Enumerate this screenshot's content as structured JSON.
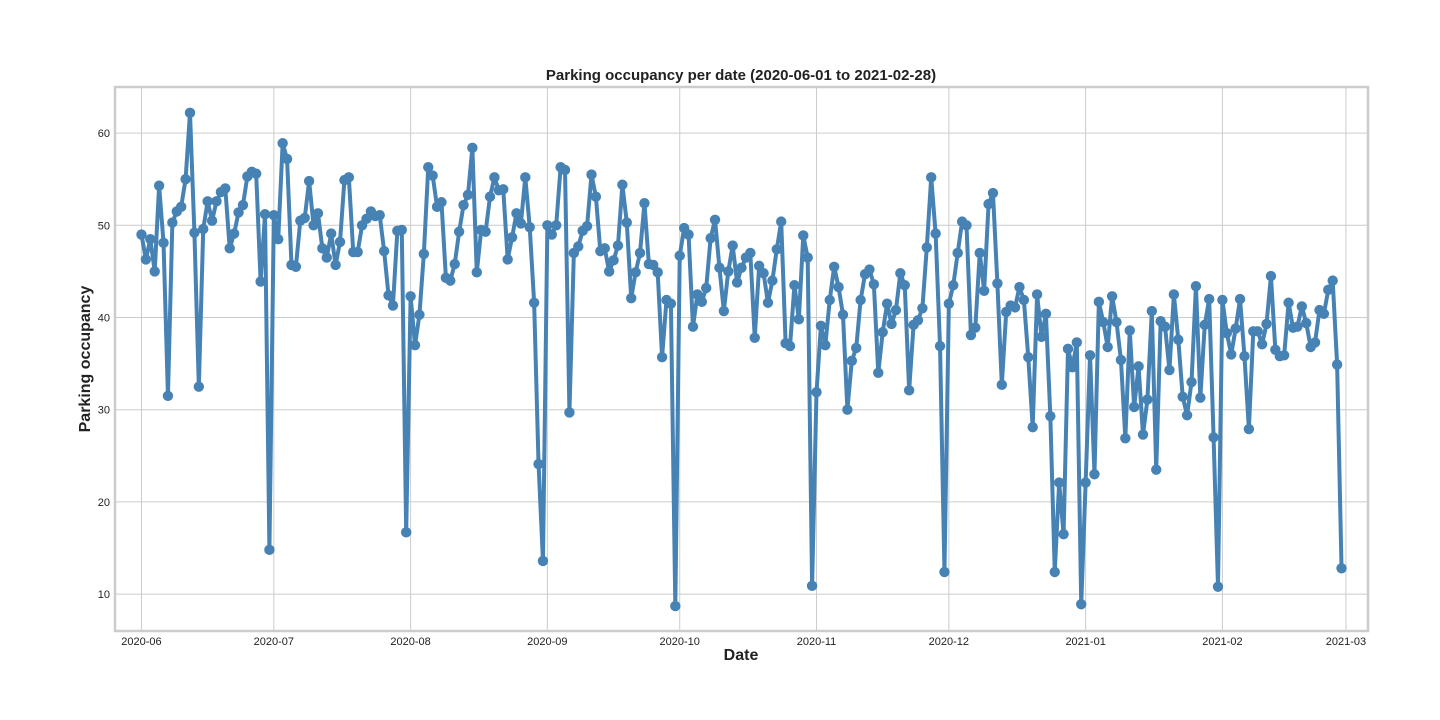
{
  "chart_data": {
    "type": "line",
    "title": "Parking occupancy per date (2020-06-01 to 2021-02-28)",
    "xlabel": "Date",
    "ylabel": "Parking occupancy",
    "x_range": [
      "2020-05-26",
      "2021-03-06"
    ],
    "ylim": [
      6.0,
      65.0
    ],
    "grid": true,
    "x_ticks": [
      "2020-06",
      "2020-07",
      "2020-08",
      "2020-09",
      "2020-10",
      "2020-11",
      "2020-12",
      "2021-01",
      "2021-02",
      "2021-03"
    ],
    "y_ticks": [
      10,
      20,
      30,
      40,
      50,
      60
    ],
    "series": [
      {
        "color": "#4682b4",
        "marker": "circle",
        "x_start": "2020-06-01",
        "x_end": "2021-02-28",
        "y": [
          49.0,
          46.3,
          48.5,
          45.0,
          54.3,
          48.1,
          31.5,
          50.3,
          51.5,
          52.0,
          55.0,
          62.2,
          49.2,
          32.5,
          49.6,
          52.6,
          50.5,
          52.6,
          53.6,
          54.0,
          47.5,
          49.1,
          51.4,
          52.2,
          55.3,
          55.8,
          55.6,
          43.9,
          51.2,
          14.8,
          51.1,
          48.5,
          58.9,
          57.2,
          45.7,
          45.5,
          50.5,
          50.8,
          54.8,
          50.0,
          51.3,
          47.5,
          46.5,
          49.1,
          45.7,
          48.2,
          54.9,
          55.2,
          47.1,
          47.1,
          50.0,
          50.7,
          51.5,
          51.0,
          51.1,
          47.2,
          42.4,
          41.3,
          49.4,
          49.5,
          16.7,
          42.3,
          37.0,
          40.3,
          46.9,
          56.3,
          55.4,
          52.0,
          52.5,
          44.3,
          44.0,
          45.8,
          49.3,
          52.2,
          53.3,
          58.4,
          44.9,
          49.5,
          49.3,
          53.1,
          55.2,
          53.8,
          53.9,
          46.3,
          48.7,
          51.3,
          50.2,
          55.2,
          49.8,
          41.6,
          24.1,
          13.6,
          50.0,
          49.0,
          50.0,
          56.3,
          56.0,
          29.7,
          47.0,
          47.7,
          49.4,
          49.9,
          55.5,
          53.1,
          47.2,
          47.5,
          45.0,
          46.2,
          47.8,
          54.4,
          50.3,
          42.1,
          44.9,
          47.0,
          52.4,
          45.8,
          45.7,
          44.9,
          35.7,
          41.9,
          41.5,
          8.7,
          46.7,
          49.7,
          49.0,
          39.0,
          42.5,
          41.7,
          43.2,
          48.6,
          50.6,
          45.4,
          40.7,
          45.0,
          47.8,
          43.8,
          45.4,
          46.5,
          47.0,
          37.8,
          45.6,
          44.8,
          41.6,
          44.0,
          47.4,
          50.4,
          37.2,
          36.9,
          43.5,
          39.8,
          48.9,
          46.5,
          10.9,
          31.9,
          39.1,
          37.0,
          41.9,
          45.5,
          43.3,
          40.3,
          30.0,
          35.3,
          36.7,
          41.9,
          44.7,
          45.2,
          43.6,
          34.0,
          38.4,
          41.5,
          39.3,
          40.8,
          44.8,
          43.5,
          32.1,
          39.2,
          39.7,
          41.0,
          47.6,
          55.2,
          49.1,
          36.9,
          12.4,
          41.5,
          43.5,
          47.0,
          50.4,
          50.0,
          38.1,
          38.9,
          47.0,
          42.9,
          52.3,
          53.5,
          43.7,
          32.7,
          40.6,
          41.3,
          41.1,
          43.3,
          41.9,
          35.7,
          28.1,
          42.5,
          37.9,
          40.4,
          29.3,
          12.4,
          22.1,
          16.5,
          36.6,
          34.6,
          37.3,
          8.9,
          22.1,
          35.9,
          23.0,
          41.7,
          39.5,
          36.8,
          42.3,
          39.5,
          35.4,
          26.9,
          38.6,
          30.3,
          34.7,
          27.3,
          31.1,
          40.7,
          23.5,
          39.6,
          39.0,
          34.3,
          42.5,
          37.6,
          31.4,
          29.4,
          33.0,
          43.4,
          31.3,
          39.2,
          42.0,
          27.0,
          10.8,
          41.9,
          38.3,
          36.0,
          38.8,
          42.0,
          35.8,
          27.9,
          38.5,
          38.5,
          37.1,
          39.3,
          44.5,
          36.5,
          35.8,
          35.9,
          41.6,
          38.9,
          39.0,
          41.2,
          39.4,
          36.8,
          37.3,
          40.8,
          40.4,
          43.0,
          44.0,
          34.9,
          12.8
        ]
      }
    ]
  }
}
